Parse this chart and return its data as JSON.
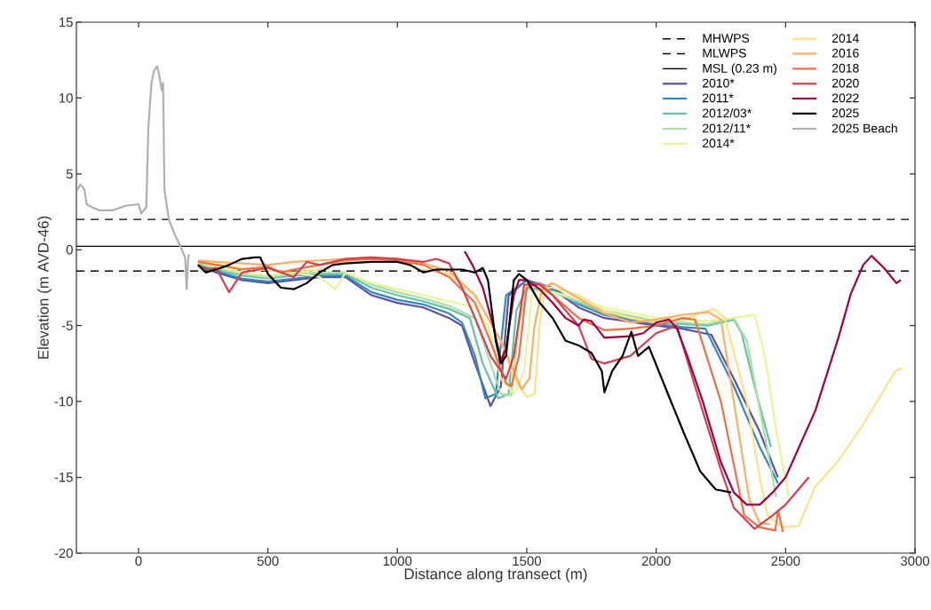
{
  "chart_data": {
    "type": "line",
    "xlabel": "Distance along transect (m)",
    "ylabel": "Elevation (m AVD-46)",
    "xlim": [
      -240,
      3000
    ],
    "ylim": [
      -20,
      15
    ],
    "xticks": [
      0,
      500,
      1000,
      1500,
      2000,
      2500,
      3000
    ],
    "yticks": [
      -20,
      -15,
      -10,
      -5,
      0,
      5,
      10,
      15
    ],
    "grid": false,
    "legend": "top right",
    "ref_lines": [
      {
        "axis": "y",
        "value": 2.0,
        "label": "MHWPS",
        "color": "#000000",
        "line_style": "dashed"
      },
      {
        "axis": "y",
        "value": -1.4,
        "label": "MLWPS",
        "color": "#000000",
        "line_style": "dashed"
      },
      {
        "axis": "y",
        "value": 0.23,
        "label": "MSL (0.23 m)",
        "color": "#000000",
        "line_style": "solid"
      }
    ],
    "series": [
      {
        "name": "2010*",
        "color": "#5e4fa2",
        "x": [
          230,
          300,
          400,
          500,
          600,
          700,
          800,
          900,
          1000,
          1100,
          1200,
          1250,
          1300,
          1360,
          1400,
          1430,
          1500,
          1600,
          1700,
          1800,
          2000,
          2100,
          2213,
          2300,
          2400,
          2470
        ],
        "values": [
          -1.0,
          -1.5,
          -2.0,
          -2.2,
          -2.0,
          -1.8,
          -1.8,
          -3.0,
          -3.5,
          -3.8,
          -4.5,
          -5.0,
          -7.5,
          -10.3,
          -9.0,
          -3.0,
          -2.0,
          -2.6,
          -3.8,
          -4.5,
          -5.0,
          -5.2,
          -5.6,
          -8.5,
          -12.0,
          -15.0
        ]
      },
      {
        "name": "2011*",
        "color": "#3288bd",
        "x": [
          230,
          300,
          400,
          500,
          600,
          700,
          800,
          900,
          1000,
          1100,
          1200,
          1250,
          1300,
          1340,
          1380,
          1420,
          1500,
          1600,
          1700,
          1800,
          2000,
          2100,
          2190,
          2300,
          2400,
          2471
        ],
        "values": [
          -1.0,
          -1.4,
          -1.9,
          -2.1,
          -1.9,
          -1.7,
          -1.7,
          -2.8,
          -3.3,
          -3.6,
          -4.2,
          -4.8,
          -7.0,
          -9.8,
          -9.5,
          -3.0,
          -2.0,
          -2.5,
          -3.6,
          -4.3,
          -4.9,
          -5.1,
          -5.2,
          -9.0,
          -13.0,
          -15.4
        ]
      },
      {
        "name": "2012/03*",
        "color": "#66c2a5",
        "x": [
          230,
          300,
          400,
          500,
          600,
          700,
          800,
          900,
          1000,
          1100,
          1200,
          1280,
          1330,
          1390,
          1430,
          1460,
          1500,
          1600,
          1700,
          1800,
          2000,
          2200,
          2300,
          2330,
          2380,
          2443
        ],
        "values": [
          -0.9,
          -1.3,
          -1.7,
          -1.9,
          -1.7,
          -1.6,
          -1.6,
          -2.5,
          -3.0,
          -3.4,
          -3.9,
          -4.5,
          -7.5,
          -9.8,
          -9.5,
          -4.0,
          -2.5,
          -2.7,
          -3.5,
          -4.2,
          -4.8,
          -5.0,
          -4.6,
          -5.5,
          -9.0,
          -13.0
        ]
      },
      {
        "name": "2012/11*",
        "color": "#abdda4",
        "x": [
          230,
          300,
          400,
          500,
          600,
          700,
          800,
          900,
          1000,
          1100,
          1200,
          1300,
          1350,
          1400,
          1440,
          1470,
          1500,
          1600,
          1700,
          1800,
          2000,
          2200,
          2300,
          2350,
          2400,
          2464
        ],
        "values": [
          -0.9,
          -1.2,
          -1.6,
          -1.8,
          -1.6,
          -1.5,
          -1.5,
          -2.3,
          -2.8,
          -3.2,
          -3.7,
          -4.5,
          -7.0,
          -9.5,
          -9.6,
          -5.0,
          -2.6,
          -2.8,
          -3.4,
          -4.0,
          -4.7,
          -4.9,
          -4.5,
          -6.0,
          -10.5,
          -16.3
        ]
      },
      {
        "name": "2014*",
        "color": "#e6f598",
        "x": [
          230,
          300,
          400,
          500,
          600,
          700,
          760,
          800,
          900,
          1000,
          1100,
          1200,
          1300,
          1350,
          1400,
          1450,
          1490,
          1520,
          1600,
          1700,
          1800,
          2000,
          2200,
          2300,
          2380,
          2420,
          2460,
          2512
        ],
        "values": [
          -0.8,
          -1.1,
          -1.5,
          -1.7,
          -1.5,
          -1.8,
          -2.6,
          -1.5,
          -2.2,
          -2.6,
          -3.0,
          -3.4,
          -3.8,
          -5.0,
          -8.5,
          -9.5,
          -8.0,
          -3.0,
          -2.8,
          -3.2,
          -3.8,
          -4.5,
          -4.7,
          -4.5,
          -4.3,
          -7.0,
          -11.5,
          -16.3
        ]
      },
      {
        "name": "2014",
        "color": "#fee08b",
        "x": [
          230,
          400,
          600,
          700,
          800,
          1000,
          1100,
          1200,
          1300,
          1400,
          1450,
          1500,
          1530,
          1550,
          1570,
          1600,
          1700,
          1800,
          1900,
          2000,
          2100,
          2223,
          2265,
          2350,
          2400,
          2430,
          2488,
          2550,
          2615,
          2700,
          2800,
          2924,
          2950
        ],
        "values": [
          -0.8,
          -1.2,
          -1.5,
          -1.3,
          -0.8,
          -0.8,
          -1.3,
          -1.6,
          -3.0,
          -6.0,
          -8.5,
          -9.7,
          -9.5,
          -5.0,
          -2.5,
          -2.5,
          -3.0,
          -4.0,
          -4.5,
          -4.8,
          -4.6,
          -3.9,
          -4.5,
          -10.0,
          -15.0,
          -17.5,
          -18.3,
          -18.2,
          -15.6,
          -14.0,
          -11.5,
          -8.0,
          -7.8
        ]
      },
      {
        "name": "2016",
        "color": "#fdae61",
        "x": [
          230,
          300,
          400,
          500,
          600,
          700,
          800,
          900,
          1000,
          1100,
          1200,
          1300,
          1400,
          1450,
          1480,
          1510,
          1530,
          1560,
          1600,
          1700,
          1800,
          1900,
          2000,
          2100,
          2200,
          2250,
          2300,
          2360,
          2400,
          2440
        ],
        "values": [
          -0.7,
          -0.8,
          -0.9,
          -1.0,
          -0.8,
          -0.7,
          -0.6,
          -0.5,
          -0.6,
          -0.9,
          -1.4,
          -3.0,
          -6.0,
          -8.0,
          -9.2,
          -8.5,
          -5.0,
          -2.5,
          -2.2,
          -3.2,
          -4.2,
          -4.8,
          -4.6,
          -4.3,
          -4.1,
          -4.6,
          -10.0,
          -16.5,
          -18.0,
          -18.1
        ]
      },
      {
        "name": "2018",
        "color": "#f46d43",
        "x": [
          230,
          300,
          400,
          500,
          550,
          600,
          700,
          800,
          900,
          1000,
          1100,
          1200,
          1300,
          1370,
          1420,
          1440,
          1470,
          1500,
          1550,
          1600,
          1700,
          1800,
          1900,
          2000,
          2100,
          2150,
          2250,
          2340,
          2400,
          2460,
          2471,
          2490
        ],
        "values": [
          -0.8,
          -1.0,
          -1.3,
          -1.1,
          -1.5,
          -1.3,
          -1.0,
          -0.7,
          -0.6,
          -0.7,
          -1.0,
          -1.8,
          -3.5,
          -6.5,
          -8.8,
          -9.0,
          -7.0,
          -2.5,
          -2.2,
          -3.0,
          -4.5,
          -5.3,
          -5.2,
          -5.0,
          -4.5,
          -4.6,
          -10.0,
          -17.5,
          -18.3,
          -18.5,
          -17.2,
          -18.6
        ]
      },
      {
        "name": "2020",
        "color": "#d53e4f",
        "x": [
          230,
          260,
          300,
          350,
          400,
          500,
          600,
          650,
          700,
          800,
          900,
          1000,
          1100,
          1150,
          1200,
          1250,
          1300,
          1360,
          1420,
          1450,
          1490,
          1550,
          1600,
          1700,
          1750,
          1800,
          1900,
          2000,
          2080,
          2150,
          2250,
          2300,
          2380,
          2450,
          2500,
          2590
        ],
        "values": [
          -1.0,
          -1.3,
          -1.2,
          -2.8,
          -1.5,
          -1.2,
          -1.8,
          -0.8,
          -1.0,
          -0.6,
          -0.5,
          -0.6,
          -0.8,
          -0.6,
          -0.9,
          -2.5,
          -4.5,
          -7.0,
          -8.5,
          -7.0,
          -2.3,
          -2.3,
          -3.0,
          -5.0,
          -7.2,
          -7.5,
          -7.0,
          -5.5,
          -5.0,
          -9.0,
          -14.5,
          -17.0,
          -18.4,
          -17.5,
          -16.8,
          -15.0
        ]
      },
      {
        "name": "2022",
        "color": "#9e0142",
        "x": [
          1260,
          1290,
          1330,
          1370,
          1400,
          1420,
          1450,
          1470,
          1500,
          1550,
          1600,
          1650,
          1700,
          1720,
          1750,
          1800,
          1900,
          1950,
          2000,
          2050,
          2080,
          2120,
          2180,
          2250,
          2300,
          2350,
          2400,
          2450,
          2500,
          2615,
          2704,
          2752,
          2800,
          2832,
          2880,
          2928,
          2945
        ],
        "values": [
          -0.1,
          -1.0,
          -2.5,
          -5.0,
          -7.3,
          -6.5,
          -3.0,
          -2.0,
          -2.0,
          -2.6,
          -3.5,
          -4.5,
          -5.0,
          -4.6,
          -4.7,
          -5.8,
          -5.7,
          -5.5,
          -4.8,
          -4.6,
          -5.2,
          -7.0,
          -10.0,
          -14.0,
          -16.0,
          -16.8,
          -16.8,
          -16.0,
          -15.0,
          -10.6,
          -5.8,
          -2.9,
          -1.0,
          -0.4,
          -1.2,
          -2.2,
          -2.0
        ]
      },
      {
        "name": "2025",
        "color": "#000000",
        "x": [
          230,
          260,
          300,
          350,
          400,
          450,
          470,
          500,
          550,
          600,
          650,
          700,
          750,
          800,
          900,
          1000,
          1050,
          1100,
          1150,
          1250,
          1300,
          1330,
          1350,
          1380,
          1400,
          1420,
          1450,
          1470,
          1500,
          1550,
          1600,
          1650,
          1700,
          1750,
          1790,
          1800,
          1830,
          1870,
          1904,
          1930,
          1972,
          2050,
          2110,
          2170,
          2230,
          2290
        ],
        "values": [
          -1.0,
          -1.5,
          -1.3,
          -1.0,
          -0.6,
          -0.5,
          -0.5,
          -1.6,
          -2.5,
          -2.6,
          -2.2,
          -1.5,
          -1.0,
          -0.9,
          -0.8,
          -0.8,
          -1.0,
          -1.5,
          -1.3,
          -1.3,
          -1.5,
          -1.2,
          -2.0,
          -6.0,
          -7.5,
          -7.0,
          -2.0,
          -1.6,
          -2.0,
          -3.5,
          -4.5,
          -6.0,
          -6.3,
          -6.8,
          -8.0,
          -9.4,
          -8.0,
          -7.0,
          -5.4,
          -7.0,
          -6.4,
          -9.7,
          -12.2,
          -14.6,
          -15.8,
          -16.0
        ]
      },
      {
        "name": "2025 Beach",
        "color": "#b0b0b0",
        "x": [
          -238,
          -225,
          -210,
          -200,
          -180,
          -150,
          -100,
          -50,
          0,
          10,
          30,
          38,
          50,
          60,
          72,
          80,
          90,
          95,
          100,
          117,
          140,
          160,
          180,
          186,
          192,
          196
        ],
        "values": [
          3.9,
          4.3,
          4.0,
          3.0,
          2.8,
          2.6,
          2.6,
          2.9,
          3.0,
          2.4,
          2.8,
          8.0,
          11.0,
          11.8,
          12.1,
          11.5,
          10.5,
          11.0,
          4.0,
          2.0,
          1.0,
          0.3,
          -0.5,
          -2.6,
          -0.5,
          -0.3
        ]
      }
    ]
  }
}
